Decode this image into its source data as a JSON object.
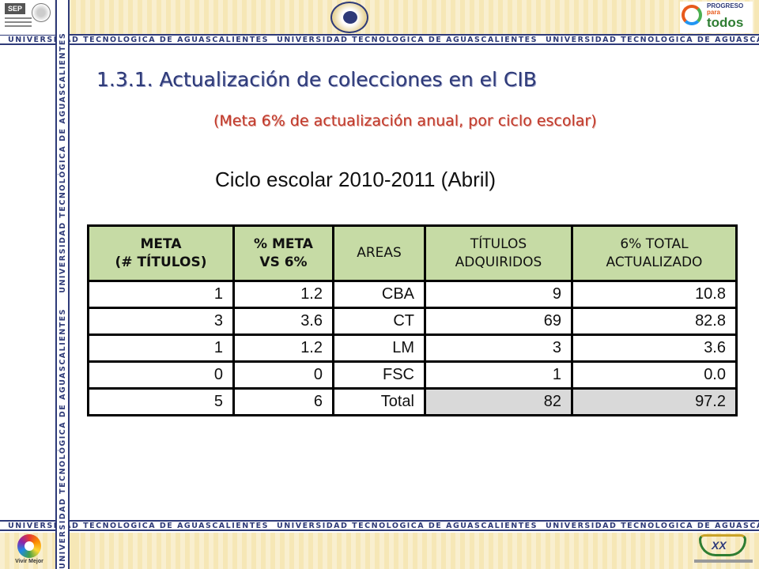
{
  "banner_text": "UNIVERSIDAD TECNOLÓGICA DE AGUASCALIENTES",
  "logos": {
    "sep": "SEP",
    "progreso_line1": "PROGRESO",
    "progreso_line2": "para",
    "progreso_line3": "todos",
    "vivir": "Vivir Mejor",
    "xx": "XX"
  },
  "title": "1.3.1. Actualización de colecciones en el CIB",
  "subtitle": "(Meta 6% de actualización anual, por ciclo escolar)",
  "cycle_label": "Ciclo escolar 2010-2011 (Abril)",
  "table": {
    "headers": [
      {
        "line1": "META",
        "line2": "(# TÍTULOS)"
      },
      {
        "line1": "% META",
        "line2": "VS 6%"
      },
      {
        "line1": "AREAS",
        "line2": ""
      },
      {
        "line1": "TÍTULOS",
        "line2": "ADQUIRIDOS"
      },
      {
        "line1": "6% TOTAL",
        "line2": "ACTUALIZADO"
      }
    ],
    "rows": [
      [
        "1",
        "1.2",
        "CBA",
        "9",
        "10.8"
      ],
      [
        "3",
        "3.6",
        "CT",
        "69",
        "82.8"
      ],
      [
        "1",
        "1.2",
        "LM",
        "3",
        "3.6"
      ],
      [
        "0",
        "0",
        "FSC",
        "1",
        "0.0"
      ],
      [
        "5",
        "6",
        "Total",
        "82",
        "97.2"
      ]
    ]
  },
  "colors": {
    "title": "#2e3a78",
    "subtitle": "#c0392b",
    "header_fill": "#c6dba5",
    "total_fill": "#d9d9d9",
    "band": "#f6e7b6"
  }
}
